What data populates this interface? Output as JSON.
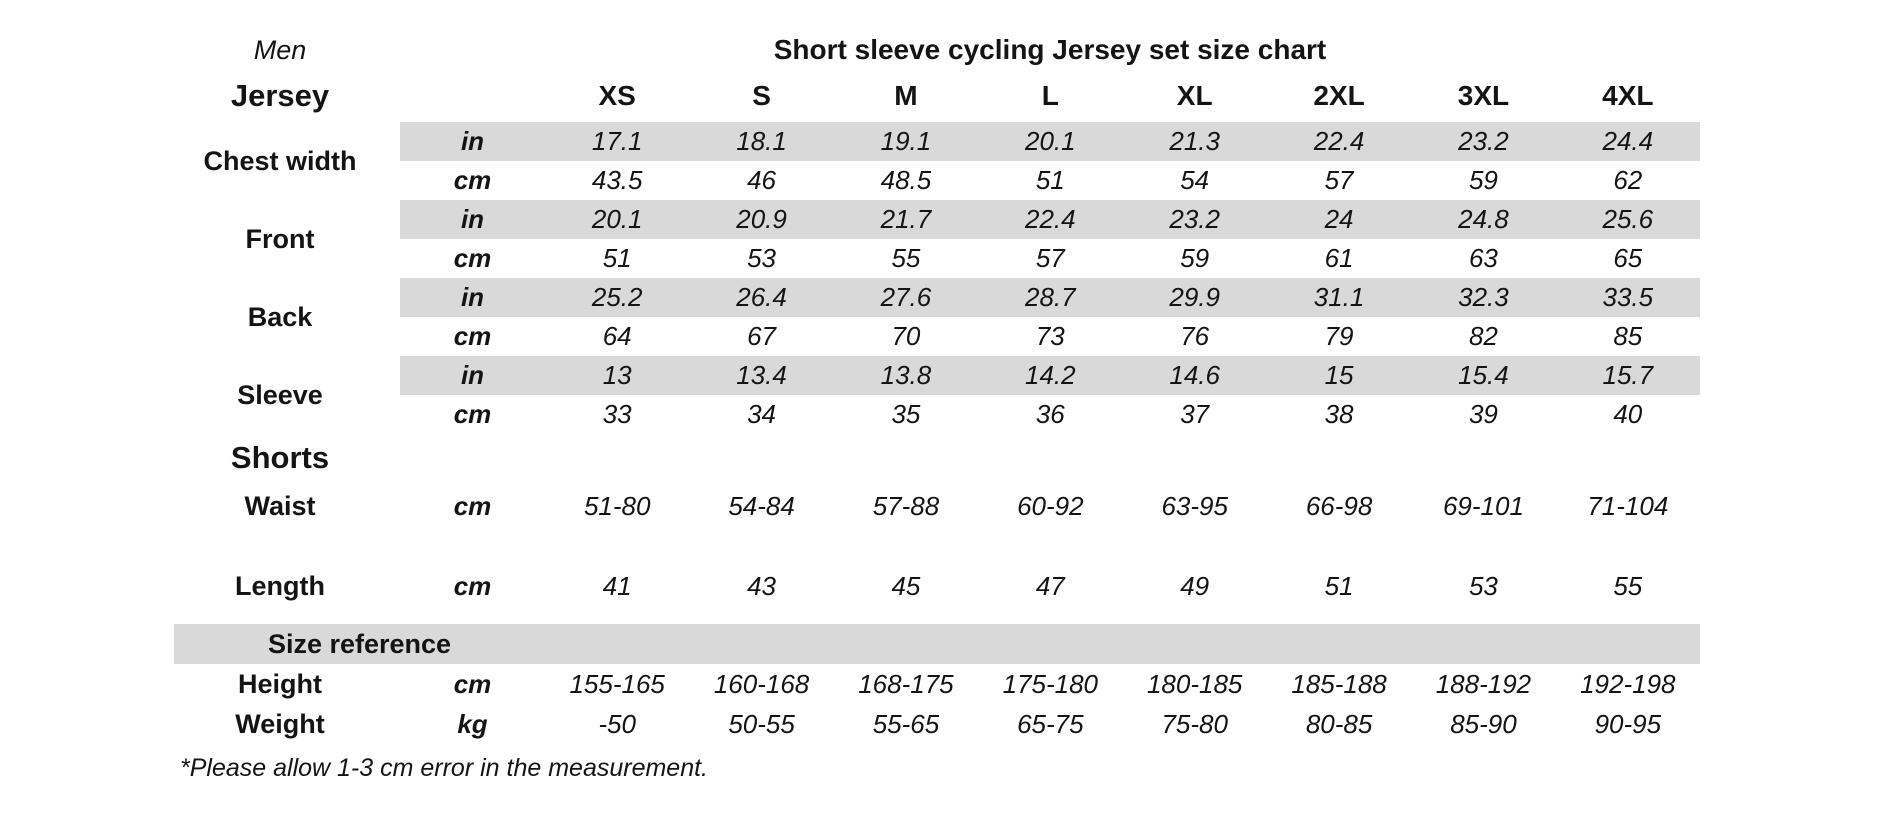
{
  "page": {
    "gender": "Men",
    "title": "Short sleeve cycling Jersey set size chart",
    "footnote": "*Please allow 1-3 cm error in the measurement."
  },
  "colors": {
    "shaded_band": "#d9d9d9",
    "text": "#141414",
    "background": "#ffffff"
  },
  "table": {
    "sizes": [
      "XS",
      "S",
      "M",
      "L",
      "XL",
      "2XL",
      "3XL",
      "4XL"
    ],
    "jersey": {
      "heading": "Jersey",
      "measurements": [
        {
          "label": "Chest width",
          "rows": [
            {
              "unit": "in",
              "shaded": true,
              "values": [
                "17.1",
                "18.1",
                "19.1",
                "20.1",
                "21.3",
                "22.4",
                "23.2",
                "24.4"
              ]
            },
            {
              "unit": "cm",
              "shaded": false,
              "values": [
                "43.5",
                "46",
                "48.5",
                "51",
                "54",
                "57",
                "59",
                "62"
              ]
            }
          ]
        },
        {
          "label": "Front",
          "rows": [
            {
              "unit": "in",
              "shaded": true,
              "values": [
                "20.1",
                "20.9",
                "21.7",
                "22.4",
                "23.2",
                "24",
                "24.8",
                "25.6"
              ]
            },
            {
              "unit": "cm",
              "shaded": false,
              "values": [
                "51",
                "53",
                "55",
                "57",
                "59",
                "61",
                "63",
                "65"
              ]
            }
          ]
        },
        {
          "label": "Back",
          "rows": [
            {
              "unit": "in",
              "shaded": true,
              "values": [
                "25.2",
                "26.4",
                "27.6",
                "28.7",
                "29.9",
                "31.1",
                "32.3",
                "33.5"
              ]
            },
            {
              "unit": "cm",
              "shaded": false,
              "values": [
                "64",
                "67",
                "70",
                "73",
                "76",
                "79",
                "82",
                "85"
              ]
            }
          ]
        },
        {
          "label": "Sleeve",
          "rows": [
            {
              "unit": "in",
              "shaded": true,
              "values": [
                "13",
                "13.4",
                "13.8",
                "14.2",
                "14.6",
                "15",
                "15.4",
                "15.7"
              ]
            },
            {
              "unit": "cm",
              "shaded": false,
              "values": [
                "33",
                "34",
                "35",
                "36",
                "37",
                "38",
                "39",
                "40"
              ]
            }
          ]
        }
      ]
    },
    "shorts": {
      "heading": "Shorts",
      "measurements": [
        {
          "label": "Waist",
          "rows": [
            {
              "unit": "cm",
              "shaded": false,
              "values": [
                "51-80",
                "54-84",
                "57-88",
                "60-92",
                "63-95",
                "66-98",
                "69-101",
                "71-104"
              ]
            }
          ]
        },
        {
          "label": "Length",
          "rows": [
            {
              "unit": "cm",
              "shaded": false,
              "values": [
                "41",
                "43",
                "45",
                "47",
                "49",
                "51",
                "53",
                "55"
              ]
            }
          ]
        }
      ]
    },
    "size_reference": {
      "heading": "Size reference",
      "measurements": [
        {
          "label": "Height",
          "rows": [
            {
              "unit": "cm",
              "shaded": false,
              "values": [
                "155-165",
                "160-168",
                "168-175",
                "175-180",
                "180-185",
                "185-188",
                "188-192",
                "192-198"
              ]
            }
          ]
        },
        {
          "label": "Weight",
          "rows": [
            {
              "unit": "kg",
              "shaded": false,
              "values": [
                "-50",
                "50-55",
                "55-65",
                "65-75",
                "75-80",
                "80-85",
                "85-90",
                "90-95"
              ]
            }
          ]
        }
      ]
    }
  }
}
